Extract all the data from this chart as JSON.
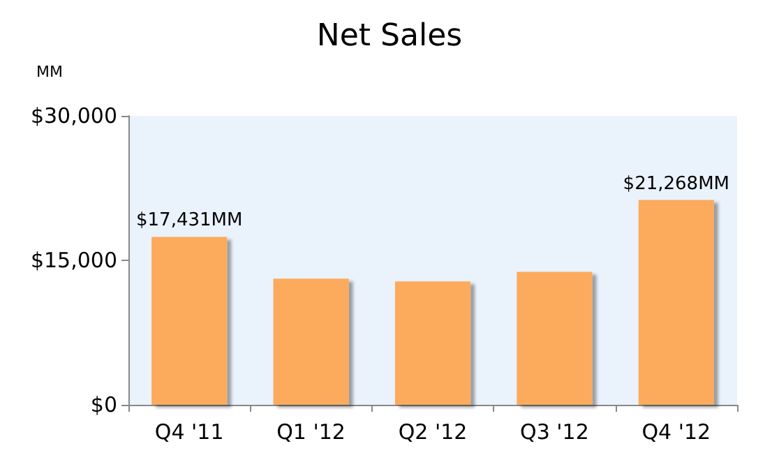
{
  "chart_data": {
    "type": "bar",
    "title": "Net Sales",
    "ylabel": "MM",
    "categories": [
      "Q4 '11",
      "Q1 '12",
      "Q2 '12",
      "Q3 '12",
      "Q4 '12"
    ],
    "values": [
      17431,
      13100,
      12800,
      13800,
      21268
    ],
    "value_labels": [
      "$17,431MM",
      null,
      null,
      null,
      "$21,268MM"
    ],
    "color": "#fcaa5c",
    "ylim": [
      0,
      30000
    ],
    "yticks": [
      {
        "value": 0,
        "label": "$0"
      },
      {
        "value": 15000,
        "label": "$15,000"
      },
      {
        "value": 30000,
        "label": "$30,000"
      }
    ],
    "grid": false
  }
}
